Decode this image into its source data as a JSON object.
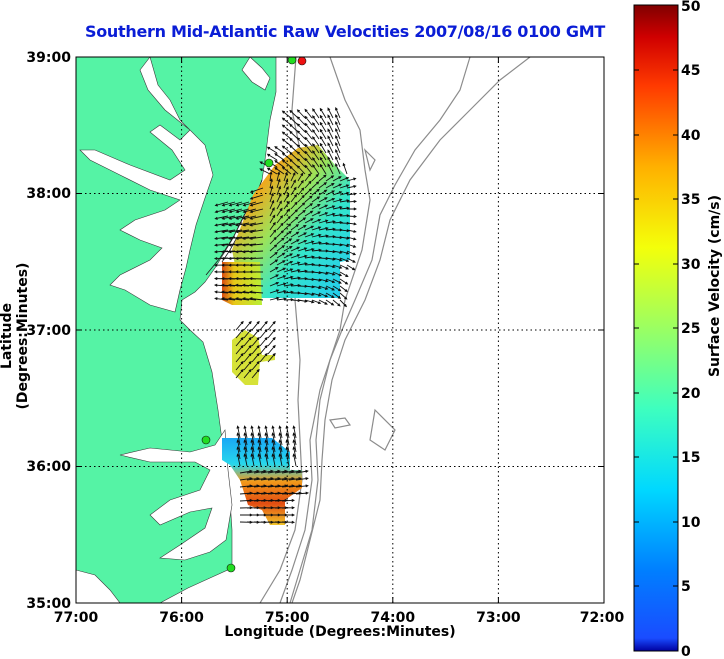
{
  "title": "Southern Mid-Atlantic Raw Velocities 2007/08/16 0100 GMT",
  "xlabel": "Longitude (Degrees:Minutes)",
  "ylabel": "Latitude (Degrees:Minutes)",
  "colorbar": {
    "label": "Surface Velocity (cm/s)",
    "ticks": [
      "0",
      "5",
      "10",
      "15",
      "20",
      "25",
      "30",
      "35",
      "40",
      "45",
      "50"
    ],
    "colormap": "jet",
    "range": [
      0,
      50
    ]
  },
  "map": {
    "xticks": [
      "77:00",
      "76:00",
      "75:00",
      "74:00",
      "73:00",
      "72:00"
    ],
    "yticks": [
      "39:00",
      "38:00",
      "37:00",
      "36:00",
      "35:00"
    ],
    "lon_range": [
      -77,
      -72
    ],
    "lat_range": [
      35,
      39
    ],
    "grid": "dotted",
    "land_color": "#55f3a5",
    "station_color": "#22dd22",
    "station_alt_color": "#ee1111",
    "contour_color": "#8c8c8c"
  }
}
